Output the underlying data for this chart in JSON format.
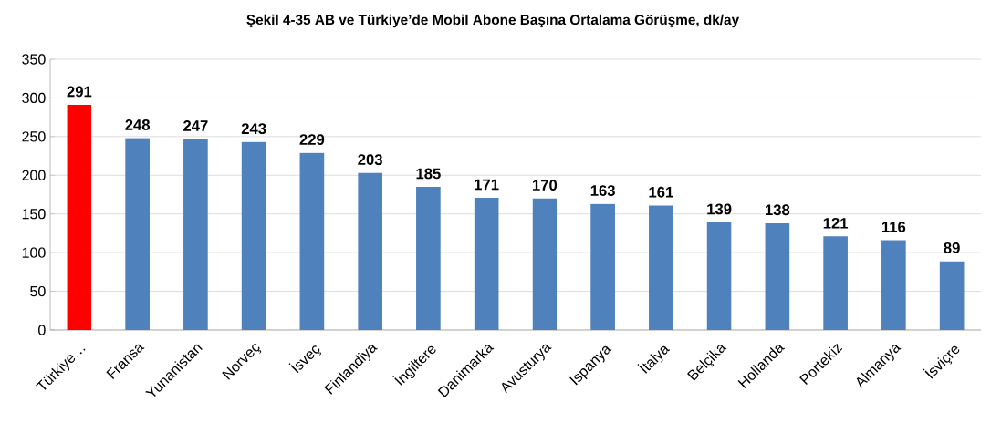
{
  "chart_data": {
    "type": "bar",
    "title": "Şekil 4-35 AB ve Türkiye’de Mobil Abone Başına Ortalama Görüşme, dk/ay",
    "categories": [
      "Türkiye…",
      "Fransa",
      "Yunanistan",
      "Norveç",
      "İsveç",
      "Finlandiya",
      "İngiltere",
      "Danimarka",
      "Avusturya",
      "İspanya",
      "İtalya",
      "Belçika",
      "Hollanda",
      "Portekiz",
      "Almanya",
      "İsviçre"
    ],
    "values": [
      291,
      248,
      247,
      243,
      229,
      203,
      185,
      171,
      170,
      163,
      161,
      139,
      138,
      121,
      116,
      89
    ],
    "colors": [
      "#ff0000",
      "#4f81bd",
      "#4f81bd",
      "#4f81bd",
      "#4f81bd",
      "#4f81bd",
      "#4f81bd",
      "#4f81bd",
      "#4f81bd",
      "#4f81bd",
      "#4f81bd",
      "#4f81bd",
      "#4f81bd",
      "#4f81bd",
      "#4f81bd",
      "#4f81bd"
    ],
    "ylim": [
      0,
      350
    ],
    "yticks": [
      0,
      50,
      100,
      150,
      200,
      250,
      300,
      350
    ],
    "grid": "y",
    "data_labels": true
  }
}
